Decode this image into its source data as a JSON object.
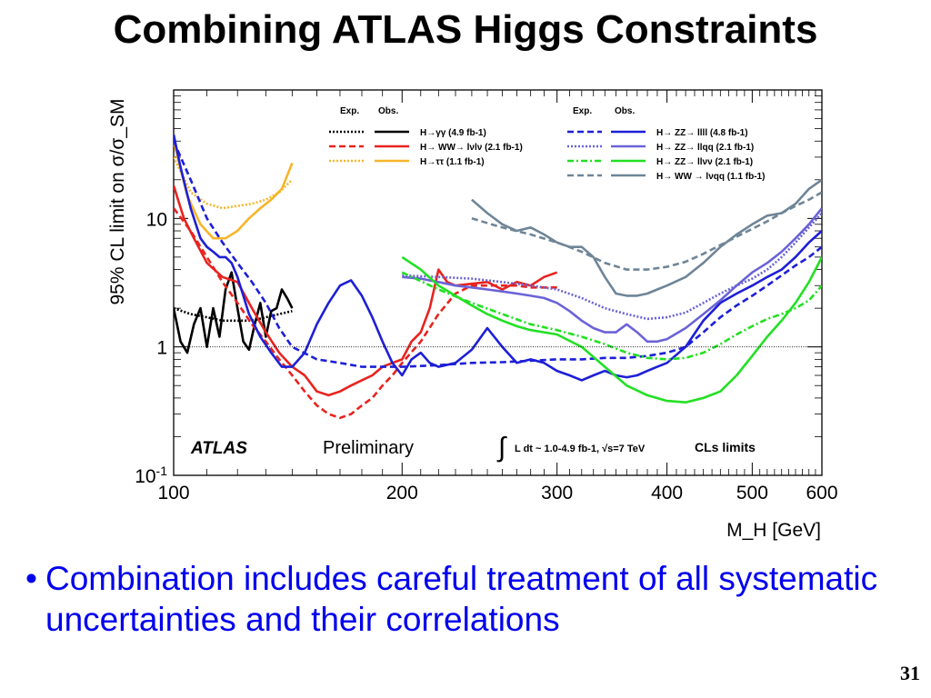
{
  "slide": {
    "title": "Combining ATLAS Higgs Constraints",
    "bullet_marker": "•",
    "bullet_text": "Combination includes careful treatment of all systematic uncertainties and their correlations",
    "page_number": "31",
    "bullet_color": "#0000ee"
  },
  "chart_data": {
    "type": "line",
    "title": "",
    "xlabel": "M_H [GeV]",
    "ylabel": "95% CL limit on σ/σ_SM",
    "x_scale": "log",
    "y_scale": "log",
    "xlim": [
      110,
      600
    ],
    "ylim": [
      0.1,
      100
    ],
    "x_ticks": [
      100,
      200,
      300,
      400,
      500,
      600
    ],
    "x_tick_labels": [
      "100",
      "200",
      "300",
      "400",
      "500",
      "600"
    ],
    "y_ticks": [
      0.1,
      1,
      10
    ],
    "y_tick_labels": [
      "10-1",
      "1",
      "10"
    ],
    "reference_line": 1,
    "annotations": {
      "atlas": "ATLAS",
      "preliminary": "Preliminary",
      "lumi": "L dt ~ 1.0-4.9 fb-1, √s=7 TeV",
      "method": "CLs limits"
    },
    "legend_headers": {
      "exp": "Exp.",
      "obs": "Obs."
    },
    "legend_left": [
      {
        "label": "H→γγ (4.9 fb-1)",
        "color": "#000000",
        "exp_style": "dotted"
      },
      {
        "label": "H→ WW→ lνlν (2.1 fb-1)",
        "color": "#e8231f",
        "exp_style": "dashed"
      },
      {
        "label": "H→ττ (1.1 fb-1)",
        "color": "#f7b52a",
        "exp_style": "dotted"
      }
    ],
    "legend_right": [
      {
        "label": "H→ ZZ→ llll (4.8 fb-1)",
        "color": "#1d1fd6",
        "exp_style": "dashed"
      },
      {
        "label": "H→ ZZ→ llqq (2.1 fb-1)",
        "color": "#6a63d6",
        "exp_style": "dotted"
      },
      {
        "label": "H→ ZZ→ llνν (2.1 fb-1)",
        "color": "#22e022",
        "exp_style": "dashdot"
      },
      {
        "label": "H→ WW → lνqq (1.1 fb-1)",
        "color": "#6f8597",
        "exp_style": "dashed"
      }
    ],
    "series": [
      {
        "name": "H→γγ Obs.",
        "color": "#000000",
        "style": "solid",
        "x": [
          110,
          112,
          114,
          116,
          118,
          120,
          122,
          124,
          126,
          128,
          130,
          132,
          134,
          136,
          138,
          140,
          142,
          144,
          146,
          148,
          150
        ],
        "y": [
          2.0,
          1.1,
          0.9,
          1.5,
          2.0,
          1.0,
          2.0,
          1.2,
          2.8,
          3.8,
          2.0,
          1.1,
          0.95,
          1.5,
          2.2,
          1.2,
          1.9,
          2.0,
          2.8,
          2.4,
          2.0
        ]
      },
      {
        "name": "H→γγ Exp.",
        "color": "#000000",
        "style": "dotted",
        "x": [
          110,
          115,
          120,
          125,
          130,
          135,
          140,
          145,
          150
        ],
        "y": [
          2.0,
          1.8,
          1.7,
          1.6,
          1.6,
          1.6,
          1.7,
          1.8,
          1.9
        ]
      },
      {
        "name": "H→WW→lνlν Obs.",
        "color": "#e8231f",
        "style": "solid",
        "x": [
          110,
          113,
          116,
          120,
          125,
          130,
          135,
          140,
          145,
          150,
          155,
          160,
          165,
          170,
          175,
          180,
          185,
          190,
          195,
          200,
          205,
          210,
          215,
          220,
          225,
          230,
          240,
          250,
          260,
          270,
          280,
          290,
          300
        ],
        "y": [
          18,
          10,
          7,
          4.5,
          3.5,
          3.2,
          2.0,
          1.3,
          0.9,
          0.7,
          0.6,
          0.45,
          0.42,
          0.45,
          0.5,
          0.55,
          0.6,
          0.7,
          0.75,
          0.8,
          1.1,
          1.3,
          2.0,
          4.0,
          3.2,
          3.0,
          3.1,
          3.2,
          2.8,
          3.2,
          3.0,
          3.5,
          3.8
        ]
      },
      {
        "name": "H→WW→lνlν Exp.",
        "color": "#e8231f",
        "style": "dashed",
        "x": [
          110,
          115,
          120,
          125,
          130,
          135,
          140,
          145,
          150,
          155,
          160,
          165,
          170,
          175,
          180,
          185,
          190,
          195,
          200,
          210,
          220,
          230,
          240,
          250,
          260,
          270,
          280,
          290,
          300
        ],
        "y": [
          12,
          8,
          5,
          3.2,
          2.2,
          1.5,
          1.1,
          0.8,
          0.6,
          0.45,
          0.35,
          0.3,
          0.28,
          0.3,
          0.35,
          0.4,
          0.5,
          0.6,
          0.75,
          1.1,
          1.8,
          2.6,
          3.0,
          3.0,
          3.0,
          3.0,
          2.9,
          2.9,
          2.9
        ]
      },
      {
        "name": "H→ττ Obs.",
        "color": "#f7b52a",
        "style": "solid",
        "x": [
          110,
          114,
          118,
          122,
          126,
          130,
          134,
          138,
          142,
          146,
          150
        ],
        "y": [
          40,
          15,
          9,
          7,
          7,
          8,
          10,
          12,
          14,
          17,
          27
        ]
      },
      {
        "name": "H→ττ Exp.",
        "color": "#f7b52a",
        "style": "dotted",
        "x": [
          110,
          115,
          120,
          125,
          130,
          135,
          140,
          145,
          150
        ],
        "y": [
          30,
          16,
          13,
          12,
          12.5,
          13,
          14,
          16,
          20
        ]
      },
      {
        "name": "H→ZZ→llll Obs.",
        "color": "#1d1fd6",
        "style": "solid",
        "x": [
          110,
          112,
          115,
          118,
          120,
          122,
          124,
          126,
          128,
          130,
          134,
          138,
          142,
          146,
          150,
          155,
          160,
          165,
          170,
          175,
          180,
          185,
          190,
          195,
          200,
          205,
          210,
          215,
          220,
          230,
          240,
          250,
          260,
          270,
          280,
          290,
          300,
          310,
          320,
          330,
          340,
          350,
          360,
          370,
          380,
          390,
          400,
          420,
          440,
          460,
          480,
          500,
          520,
          540,
          560,
          580,
          600
        ],
        "y": [
          45,
          25,
          12,
          7,
          6,
          5.5,
          5,
          5,
          4.5,
          3.5,
          1.8,
          1.2,
          0.9,
          0.7,
          0.7,
          0.9,
          1.5,
          2.2,
          3.0,
          3.3,
          2.5,
          1.7,
          1.1,
          0.75,
          0.6,
          0.8,
          0.9,
          0.75,
          0.7,
          0.75,
          0.95,
          1.4,
          1.0,
          0.75,
          0.8,
          0.75,
          0.65,
          0.6,
          0.55,
          0.6,
          0.65,
          0.6,
          0.58,
          0.6,
          0.65,
          0.7,
          0.75,
          1.0,
          1.6,
          2.2,
          2.6,
          3.0,
          3.5,
          4.0,
          5.0,
          6.5,
          8.0
        ]
      },
      {
        "name": "H→ZZ→llll Exp.",
        "color": "#1d1fd6",
        "style": "dashed",
        "x": [
          110,
          115,
          120,
          125,
          130,
          135,
          140,
          145,
          150,
          160,
          170,
          180,
          190,
          200,
          220,
          240,
          260,
          280,
          300,
          320,
          340,
          360,
          380,
          400,
          420,
          440,
          460,
          480,
          500,
          520,
          540,
          560,
          580,
          600
        ],
        "y": [
          40,
          20,
          10,
          6.5,
          4.5,
          3.2,
          2.2,
          1.4,
          1.0,
          0.8,
          0.75,
          0.7,
          0.7,
          0.7,
          0.72,
          0.75,
          0.76,
          0.78,
          0.8,
          0.8,
          0.82,
          0.82,
          0.85,
          0.9,
          1.0,
          1.3,
          1.7,
          2.1,
          2.5,
          3.0,
          3.6,
          4.3,
          5.0,
          6.0
        ]
      },
      {
        "name": "H→ZZ→llqq Obs.",
        "color": "#6a63d6",
        "style": "solid",
        "x": [
          200,
          210,
          220,
          230,
          240,
          250,
          260,
          270,
          280,
          290,
          300,
          310,
          320,
          330,
          340,
          350,
          360,
          370,
          380,
          390,
          400,
          420,
          440,
          460,
          480,
          500,
          520,
          540,
          560,
          580,
          600
        ],
        "y": [
          3.5,
          3.4,
          3.2,
          3.0,
          2.9,
          2.8,
          2.7,
          2.6,
          2.5,
          2.4,
          2.2,
          1.9,
          1.6,
          1.4,
          1.3,
          1.3,
          1.5,
          1.3,
          1.1,
          1.1,
          1.15,
          1.4,
          1.8,
          2.3,
          3.0,
          3.8,
          4.5,
          5.5,
          7.0,
          9.0,
          12.0
        ]
      },
      {
        "name": "H→ZZ→llqq Exp.",
        "color": "#6a63d6",
        "style": "dotted",
        "x": [
          200,
          220,
          240,
          260,
          280,
          300,
          320,
          340,
          360,
          380,
          400,
          420,
          440,
          460,
          480,
          500,
          520,
          540,
          560,
          580,
          600
        ],
        "y": [
          3.6,
          3.5,
          3.4,
          3.2,
          3.0,
          2.8,
          2.4,
          2.0,
          1.8,
          1.65,
          1.7,
          1.85,
          2.2,
          2.6,
          3.0,
          3.4,
          4.0,
          5.0,
          6.5,
          8.5,
          11.0
        ]
      },
      {
        "name": "H→ZZ→llνν Obs.",
        "color": "#22e022",
        "style": "solid",
        "x": [
          200,
          210,
          220,
          230,
          240,
          250,
          260,
          270,
          280,
          290,
          300,
          320,
          340,
          360,
          380,
          400,
          420,
          440,
          460,
          480,
          500,
          520,
          540,
          560,
          580,
          600
        ],
        "y": [
          5.0,
          4.0,
          3.0,
          2.5,
          2.1,
          1.8,
          1.6,
          1.45,
          1.35,
          1.3,
          1.25,
          1.0,
          0.7,
          0.5,
          0.42,
          0.38,
          0.37,
          0.4,
          0.45,
          0.6,
          0.85,
          1.2,
          1.6,
          2.2,
          3.2,
          5.0
        ]
      },
      {
        "name": "H→ZZ→llνν Exp.",
        "color": "#22e022",
        "style": "dashdot",
        "x": [
          200,
          220,
          240,
          260,
          280,
          300,
          320,
          340,
          360,
          380,
          400,
          420,
          440,
          460,
          480,
          500,
          520,
          540,
          560,
          580,
          600
        ],
        "y": [
          3.8,
          2.8,
          2.2,
          1.8,
          1.5,
          1.35,
          1.2,
          1.05,
          0.9,
          0.82,
          0.8,
          0.82,
          0.9,
          1.05,
          1.25,
          1.45,
          1.65,
          1.8,
          2.0,
          2.3,
          3.0
        ]
      },
      {
        "name": "H→WW→lνqq Obs.",
        "color": "#6f8597",
        "style": "solid",
        "x": [
          240,
          250,
          260,
          270,
          280,
          290,
          300,
          310,
          320,
          330,
          340,
          350,
          360,
          370,
          380,
          390,
          400,
          420,
          440,
          460,
          480,
          500,
          520,
          540,
          560,
          580,
          600
        ],
        "y": [
          14,
          11,
          9,
          8,
          8.5,
          7.5,
          6.5,
          6,
          6,
          5,
          3.5,
          2.6,
          2.5,
          2.5,
          2.6,
          2.8,
          3.0,
          3.5,
          4.5,
          6.0,
          7.5,
          9.0,
          10.5,
          11.0,
          13.0,
          17.0,
          20.0
        ]
      },
      {
        "name": "H→WW→lνqq Exp.",
        "color": "#6f8597",
        "style": "dashed",
        "x": [
          240,
          260,
          280,
          300,
          320,
          340,
          360,
          380,
          400,
          420,
          440,
          460,
          480,
          500,
          520,
          540,
          560,
          580,
          600
        ],
        "y": [
          10,
          8.5,
          7.5,
          6.5,
          5.5,
          4.5,
          4.0,
          4.0,
          4.2,
          4.6,
          5.3,
          6.2,
          7.2,
          8.3,
          9.5,
          11.0,
          12.5,
          14.0,
          16.0
        ]
      }
    ]
  }
}
